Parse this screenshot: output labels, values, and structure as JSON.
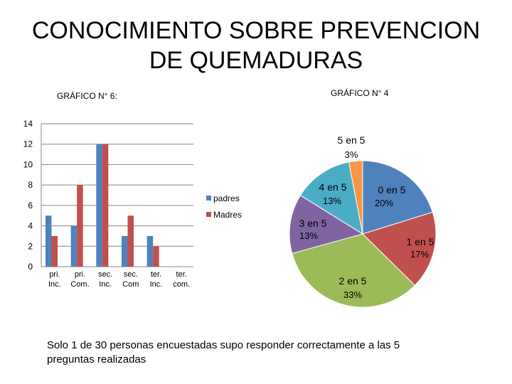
{
  "slide": {
    "title_line1": "CONOCIMIENTO SOBRE PREVENCION",
    "title_line2": "DE QUEMADURAS",
    "footer": "Solo 1 de 30 personas encuestadas supo responder correctamente a las 5 preguntas realizadas"
  },
  "chart_data": [
    {
      "type": "bar",
      "title": "GRÁFICO N° 6:",
      "categories": [
        [
          "pri.",
          "Inc."
        ],
        [
          "pri.",
          "Com."
        ],
        [
          "sec.",
          "Inc."
        ],
        [
          "sec.",
          "Com"
        ],
        [
          "ter.",
          "Inc."
        ],
        [
          "ter.",
          "com."
        ]
      ],
      "series": [
        {
          "name": "padres",
          "color": "#4F81BD",
          "values": [
            5,
            4,
            12,
            3,
            3,
            0
          ]
        },
        {
          "name": "Madres",
          "color": "#C0504D",
          "values": [
            3,
            8,
            12,
            5,
            2,
            0
          ]
        }
      ],
      "ylim": [
        0,
        14
      ],
      "yticks": [
        0,
        2,
        4,
        6,
        8,
        10,
        12,
        14
      ],
      "grid": true,
      "legend": "right"
    },
    {
      "type": "pie",
      "title": "GRÁFICO N° 4",
      "slices": [
        {
          "label": "0 en 5",
          "pct": "20%",
          "value": 20,
          "color": "#4F81BD"
        },
        {
          "label": "1 en 5",
          "pct": "17%",
          "value": 17,
          "color": "#C0504D"
        },
        {
          "label": "2 en 5",
          "pct": "33%",
          "value": 33,
          "color": "#9BBB59"
        },
        {
          "label": "3 en 5",
          "pct": "13%",
          "value": 13,
          "color": "#8064A2"
        },
        {
          "label": "4 en 5",
          "pct": "13%",
          "value": 13,
          "color": "#4BACC6"
        },
        {
          "label": "5 en 5",
          "pct": "3%",
          "value": 3,
          "color": "#F79646"
        }
      ]
    }
  ]
}
